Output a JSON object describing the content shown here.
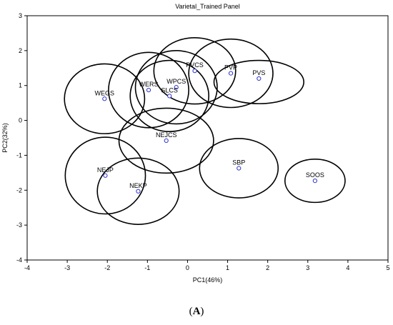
{
  "caption": {
    "open": "(",
    "letter": "A",
    "close": ")"
  },
  "chart_data": {
    "type": "scatter",
    "title": "Varietal_Trained Panel",
    "xlabel": "PC1(46%)",
    "ylabel": "PC2(32%)",
    "xlim": [
      -4,
      5
    ],
    "ylim": [
      -4,
      3
    ],
    "xticks": [
      "-4",
      "-3",
      "-2",
      "-1",
      "0",
      "1",
      "2",
      "3",
      "4",
      "5"
    ],
    "yticks": [
      "3",
      "2",
      "1",
      "0",
      "-1",
      "-2",
      "-3",
      "-4"
    ],
    "grid": false,
    "points": [
      {
        "label": "WEGS",
        "x": -2.07,
        "y": 0.62
      },
      {
        "label": "WERS",
        "x": -0.97,
        "y": 0.87
      },
      {
        "label": "WPCS",
        "x": -0.28,
        "y": 0.95
      },
      {
        "label": "SLCS",
        "x": -0.45,
        "y": 0.7
      },
      {
        "label": "PVCS",
        "x": 0.18,
        "y": 1.42
      },
      {
        "label": "PVP",
        "x": 1.08,
        "y": 1.35
      },
      {
        "label": "PVS",
        "x": 1.78,
        "y": 1.2
      },
      {
        "label": "NEJCS",
        "x": -0.53,
        "y": -0.58
      },
      {
        "label": "SBP",
        "x": 1.28,
        "y": -1.37
      },
      {
        "label": "SOOS",
        "x": 3.18,
        "y": -1.73
      },
      {
        "label": "NEJP",
        "x": -2.05,
        "y": -1.58
      },
      {
        "label": "NEKP",
        "x": -1.23,
        "y": -2.03
      }
    ],
    "confidence_ellipses": [
      {
        "cx": -2.07,
        "cy": 0.62,
        "rx": 1.0,
        "ry": 1.0,
        "angle": 0
      },
      {
        "cx": -0.97,
        "cy": 0.87,
        "rx": 1.0,
        "ry": 1.08,
        "angle": 0
      },
      {
        "cx": -0.28,
        "cy": 0.95,
        "rx": 1.02,
        "ry": 1.05,
        "angle": 0
      },
      {
        "cx": -0.45,
        "cy": 0.7,
        "rx": 0.98,
        "ry": 1.02,
        "angle": 0
      },
      {
        "cx": 0.18,
        "cy": 1.42,
        "rx": 1.02,
        "ry": 0.95,
        "angle": 0
      },
      {
        "cx": 1.08,
        "cy": 1.35,
        "rx": 1.05,
        "ry": 0.98,
        "angle": 0
      },
      {
        "cx": 1.78,
        "cy": 1.1,
        "rx": 1.12,
        "ry": 0.62,
        "angle": 0
      },
      {
        "cx": -0.53,
        "cy": -0.58,
        "rx": 1.18,
        "ry": 0.93,
        "angle": 0
      },
      {
        "cx": 1.28,
        "cy": -1.37,
        "rx": 0.98,
        "ry": 0.85,
        "angle": 0
      },
      {
        "cx": 3.18,
        "cy": -1.73,
        "rx": 0.75,
        "ry": 0.62,
        "angle": 0
      },
      {
        "cx": -2.05,
        "cy": -1.58,
        "rx": 1.0,
        "ry": 1.1,
        "angle": 0
      },
      {
        "cx": -1.23,
        "cy": -2.03,
        "rx": 1.02,
        "ry": 0.95,
        "angle": 0
      }
    ]
  }
}
